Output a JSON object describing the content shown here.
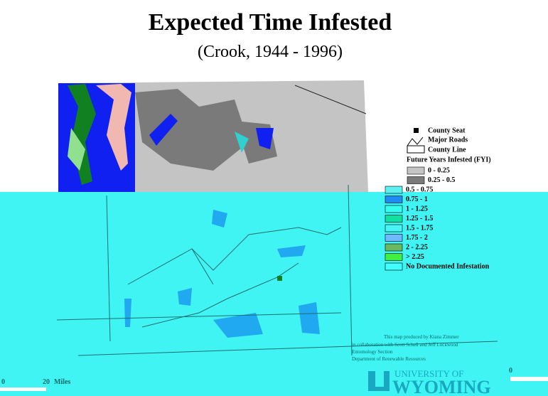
{
  "header": {
    "title": "Expected Time Infested",
    "subtitle": "(Crook, 1944 - 1996)"
  },
  "legend": {
    "symbols": [
      "County Seat",
      "Major Roads",
      "County Line"
    ],
    "heading": "Future Years Infested (FYI)",
    "classes": [
      {
        "label": "0 - 0.25",
        "color": "#c4c4c4"
      },
      {
        "label": "0.25 - 0.5",
        "color": "#7a7a7a"
      },
      {
        "label": "0.5 - 0.75",
        "color": "#5cf0f0"
      },
      {
        "label": "0.75 - 1",
        "color": "#1e8cf0"
      },
      {
        "label": "1 - 1.25",
        "color": "#36fff0"
      },
      {
        "label": "1.25 - 1.5",
        "color": "#10e0a0"
      },
      {
        "label": "1.5 - 1.75",
        "color": "#48f4f4"
      },
      {
        "label": "1.75 - 2",
        "color": "#70b8ff"
      },
      {
        "label": "2 - 2.25",
        "color": "#6cb860"
      },
      {
        "label": "> 2.25",
        "color": "#40f040"
      },
      {
        "label": "No Documented Infestation",
        "color": "#40ffff"
      }
    ]
  },
  "credits": [
    "This map produced by Kiana Zimmer",
    "in collaboration with Scott Schell and Jeff Lockwood",
    "Entomology Section",
    "Department of Renewable Resources"
  ],
  "scale": {
    "start": "0",
    "mid": "20",
    "unit": "Miles",
    "right": "0"
  },
  "logo": {
    "line1": "UNIVERSITY OF",
    "line2": "WYOMING"
  }
}
